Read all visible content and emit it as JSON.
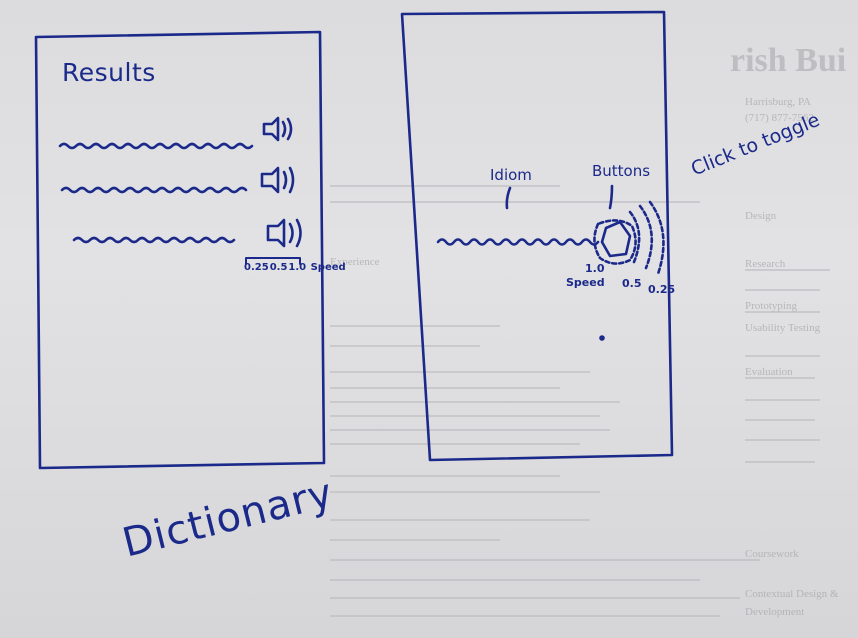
{
  "left_panel": {
    "heading": "Results",
    "rows": [
      {
        "name": "result-row-1"
      },
      {
        "name": "result-row-2"
      },
      {
        "name": "result-row-3"
      }
    ],
    "speed_options": [
      "0.25",
      "0.5",
      "1.0"
    ],
    "speed_label": "Speed"
  },
  "right_panel": {
    "idiom_label": "Idiom",
    "buttons_label": "Buttons",
    "annotation": "Click to toggle",
    "speed_values": [
      "1.0",
      "0.5",
      "0.25"
    ],
    "speed_label": "Speed"
  },
  "caption": "Dictionary",
  "background_resume": {
    "title": "rish Bui",
    "lines": [
      "Harrisburg, PA",
      "(717) 877-7562",
      "Design",
      "Research",
      "Prototyping",
      "Usability Testing",
      "Evaluation",
      "Experience",
      "Coursework",
      "Contextual Design &",
      "Development"
    ]
  },
  "colors": {
    "ink": "#1b2a8a",
    "paper": "#e0e0e2",
    "ghost_text": "#a9a9ad"
  }
}
